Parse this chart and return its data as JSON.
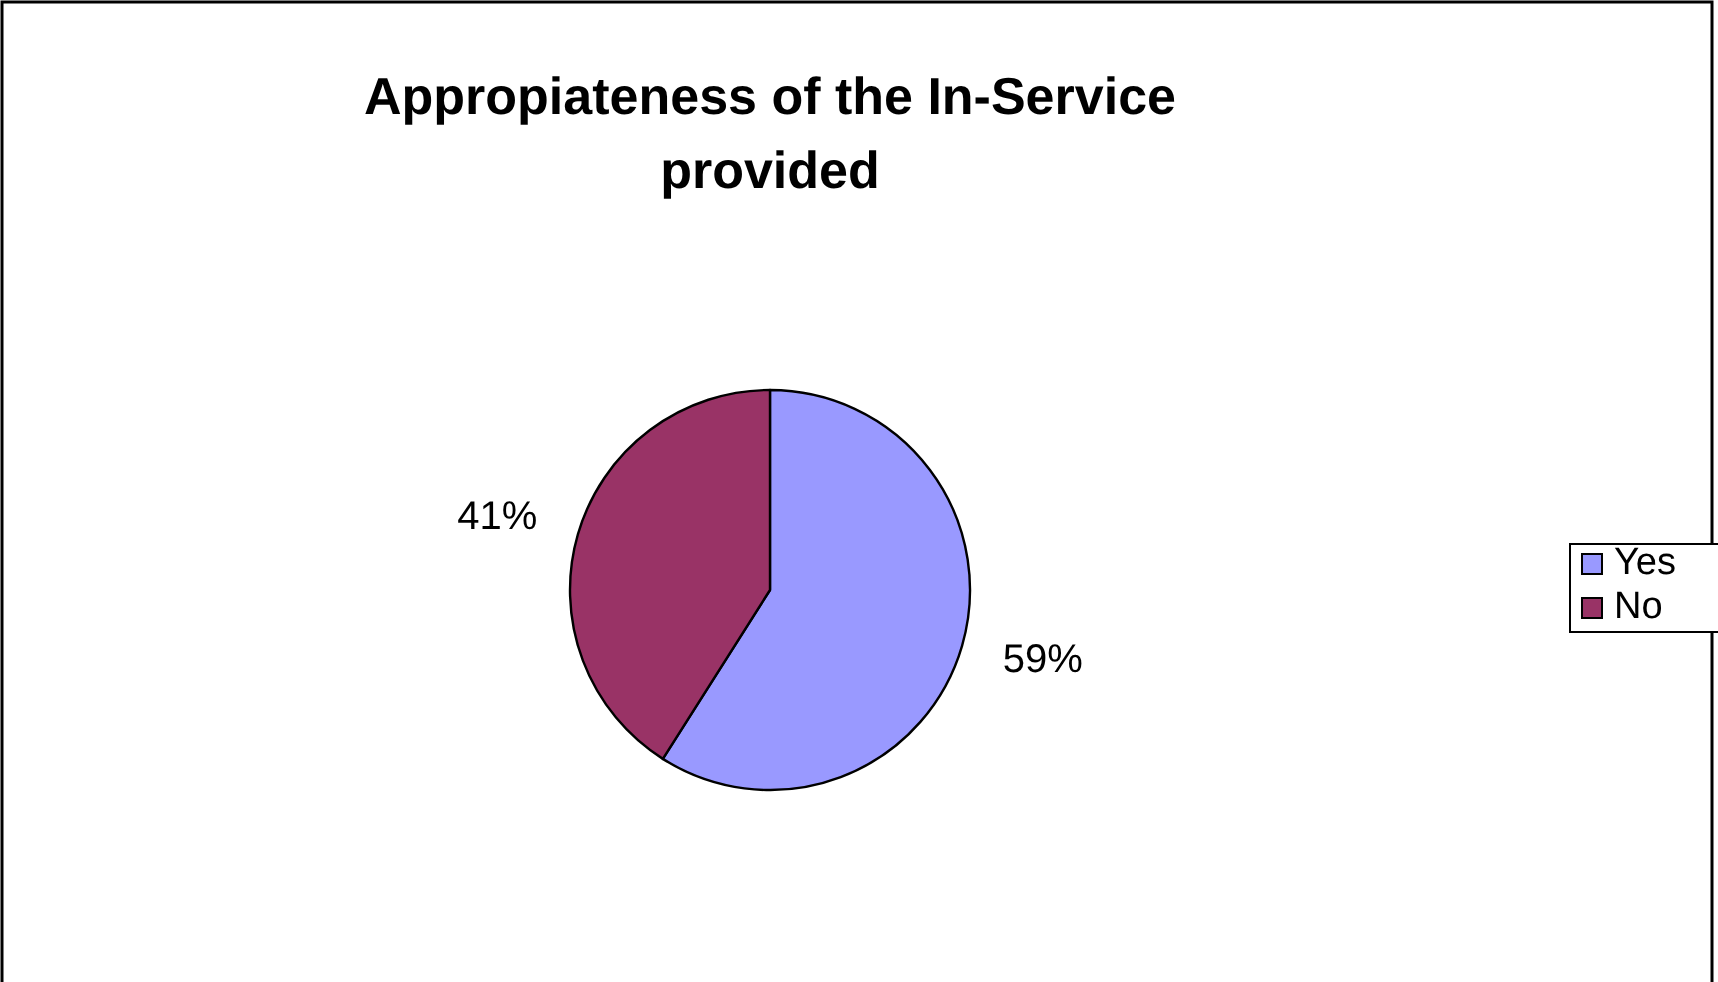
{
  "chart_data": {
    "type": "pie",
    "title": "Appropiateness of the In-Service provided",
    "categories": [
      "Yes",
      "No"
    ],
    "values": [
      59,
      41
    ],
    "colors": [
      "#9999ff",
      "#993366"
    ],
    "value_labels": [
      "59%",
      "41%"
    ],
    "legend": "right"
  }
}
